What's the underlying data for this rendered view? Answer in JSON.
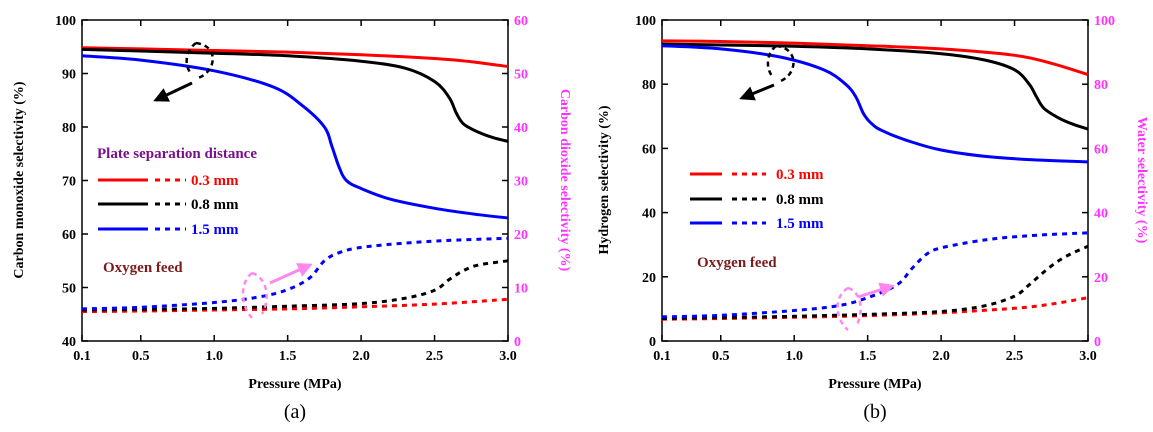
{
  "chart_data": [
    {
      "type": "line",
      "panel_label": "(a)",
      "xlabel": "Pressure (MPa)",
      "ylabel": "Carbon monoxide selectivity (%)",
      "y2label": "Carbon dioxide selectivity (%)",
      "xlim": [
        0.1,
        3.0
      ],
      "ylim": [
        40,
        100
      ],
      "y2lim": [
        0,
        60
      ],
      "xticks": [
        "0.1",
        "0.5",
        "1.0",
        "1.5",
        "2.0",
        "2.5",
        "3.0"
      ],
      "xtick_values": [
        0.1,
        0.5,
        1.0,
        1.5,
        2.0,
        2.5,
        3.0
      ],
      "yticks": [
        "40",
        "50",
        "60",
        "70",
        "80",
        "90",
        "100"
      ],
      "y2ticks": [
        "0",
        "10",
        "20",
        "30",
        "40",
        "50",
        "60"
      ],
      "legend_title": "Plate separation distance",
      "annotation": "Oxygen feed",
      "series": [
        {
          "name": "0.3 mm",
          "color": "#ff0000",
          "axis": "left",
          "x": [
            0.1,
            0.5,
            1.0,
            1.5,
            2.0,
            2.5,
            2.75,
            3.0
          ],
          "y": [
            94.8,
            94.6,
            94.3,
            94.0,
            93.5,
            92.8,
            92.2,
            91.3
          ]
        },
        {
          "name": "0.8 mm",
          "color": "#000000",
          "axis": "left",
          "x": [
            0.1,
            0.5,
            1.0,
            1.5,
            2.0,
            2.3,
            2.5,
            2.6,
            2.65,
            2.7,
            2.8,
            2.9,
            3.0
          ],
          "y": [
            94.5,
            94.2,
            93.8,
            93.3,
            92.3,
            91.0,
            88.5,
            85.5,
            82.5,
            80.5,
            79.0,
            78.0,
            77.3
          ]
        },
        {
          "name": "1.5 mm",
          "color": "#0000ff",
          "axis": "left",
          "x": [
            0.1,
            0.5,
            1.0,
            1.4,
            1.6,
            1.75,
            1.8,
            1.85,
            1.9,
            2.0,
            2.2,
            2.5,
            2.8,
            3.0
          ],
          "y": [
            93.3,
            92.5,
            90.5,
            87.5,
            84.0,
            80.0,
            76.5,
            72.5,
            70.0,
            68.5,
            66.5,
            64.8,
            63.6,
            63.0
          ]
        },
        {
          "name": "0.3 mm",
          "color": "#ff0000",
          "axis": "right",
          "dashed": true,
          "x": [
            0.1,
            0.5,
            1.0,
            1.5,
            2.0,
            2.5,
            3.0
          ],
          "y": [
            5.5,
            5.6,
            5.8,
            6.0,
            6.4,
            6.9,
            7.8
          ]
        },
        {
          "name": "0.8 mm",
          "color": "#000000",
          "axis": "right",
          "dashed": true,
          "x": [
            0.1,
            0.5,
            1.0,
            1.5,
            2.0,
            2.3,
            2.5,
            2.6,
            2.7,
            2.8,
            3.0
          ],
          "y": [
            5.8,
            5.9,
            6.1,
            6.5,
            7.0,
            8.0,
            9.5,
            11.5,
            13.2,
            14.2,
            15.0
          ]
        },
        {
          "name": "1.5 mm",
          "color": "#0000ff",
          "axis": "right",
          "dashed": true,
          "x": [
            0.1,
            0.5,
            1.0,
            1.3,
            1.5,
            1.65,
            1.75,
            1.85,
            2.0,
            2.3,
            2.6,
            3.0
          ],
          "y": [
            6.0,
            6.3,
            7.2,
            8.2,
            9.6,
            11.8,
            15.0,
            16.5,
            17.5,
            18.3,
            18.8,
            19.2
          ]
        }
      ]
    },
    {
      "type": "line",
      "panel_label": "(b)",
      "xlabel": "Pressure (MPa)",
      "ylabel": "Hydrogen selectivity (%)",
      "y2label": "Water selectivity (%)",
      "xlim": [
        0.1,
        3.0
      ],
      "ylim": [
        0,
        100
      ],
      "y2lim": [
        0,
        100
      ],
      "xticks": [
        "0.1",
        "0.5",
        "1.0",
        "1.5",
        "2.0",
        "2.5",
        "3.0"
      ],
      "xtick_values": [
        0.1,
        0.5,
        1.0,
        1.5,
        2.0,
        2.5,
        3.0
      ],
      "yticks": [
        "0",
        "20",
        "40",
        "60",
        "80",
        "100"
      ],
      "y2ticks": [
        "0",
        "20",
        "40",
        "60",
        "80",
        "100"
      ],
      "annotation": "Oxygen feed",
      "series": [
        {
          "name": "0.3 mm",
          "color": "#ff0000",
          "axis": "left",
          "x": [
            0.1,
            0.5,
            1.0,
            1.5,
            2.0,
            2.5,
            2.75,
            3.0
          ],
          "y": [
            93.5,
            93.3,
            92.8,
            92.0,
            91.0,
            89.0,
            86.5,
            83.0
          ]
        },
        {
          "name": "0.8 mm",
          "color": "#000000",
          "axis": "left",
          "x": [
            0.1,
            0.5,
            1.0,
            1.5,
            2.0,
            2.3,
            2.5,
            2.6,
            2.65,
            2.7,
            2.8,
            2.9,
            3.0
          ],
          "y": [
            92.5,
            92.2,
            91.8,
            91.0,
            89.5,
            87.5,
            84.5,
            80.0,
            76.0,
            72.5,
            69.5,
            67.5,
            66.0
          ]
        },
        {
          "name": "1.5 mm",
          "color": "#0000ff",
          "axis": "left",
          "x": [
            0.1,
            0.5,
            0.9,
            1.2,
            1.35,
            1.42,
            1.47,
            1.52,
            1.6,
            1.8,
            2.0,
            2.3,
            2.6,
            3.0
          ],
          "y": [
            92.0,
            91.0,
            88.5,
            84.5,
            80.0,
            76.0,
            71.0,
            68.0,
            65.5,
            62.0,
            59.5,
            57.5,
            56.5,
            55.8
          ]
        },
        {
          "name": "0.3 mm",
          "color": "#ff0000",
          "axis": "right",
          "dashed": true,
          "x": [
            0.1,
            0.5,
            1.0,
            1.5,
            2.0,
            2.5,
            2.75,
            3.0
          ],
          "y": [
            6.8,
            7.0,
            7.4,
            7.9,
            8.8,
            10.2,
            11.5,
            13.5
          ]
        },
        {
          "name": "0.8 mm",
          "color": "#000000",
          "axis": "right",
          "dashed": true,
          "x": [
            0.1,
            0.5,
            1.0,
            1.5,
            2.0,
            2.3,
            2.5,
            2.6,
            2.7,
            2.8,
            2.9,
            3.0
          ],
          "y": [
            7.0,
            7.3,
            7.7,
            8.3,
            9.2,
            11.0,
            14.0,
            17.5,
            21.5,
            25.0,
            27.5,
            29.5
          ]
        },
        {
          "name": "1.5 mm",
          "color": "#0000ff",
          "axis": "right",
          "dashed": true,
          "x": [
            0.1,
            0.5,
            1.0,
            1.3,
            1.5,
            1.7,
            1.8,
            1.9,
            2.0,
            2.3,
            2.6,
            3.0
          ],
          "y": [
            7.5,
            8.0,
            9.5,
            11.0,
            13.5,
            17.5,
            22.5,
            27.0,
            29.0,
            31.5,
            32.8,
            33.7
          ]
        }
      ]
    }
  ],
  "legend_entries": [
    "0.3 mm",
    "0.8 mm",
    "1.5 mm"
  ],
  "colors": {
    "red": "#ff0000",
    "black": "#000000",
    "blue": "#0000ff",
    "right_axis": "#ff33ff",
    "legend_title": "#7a0f8c",
    "annotation": "#7a1a1a",
    "arrow_pink": "#ff88ee"
  }
}
